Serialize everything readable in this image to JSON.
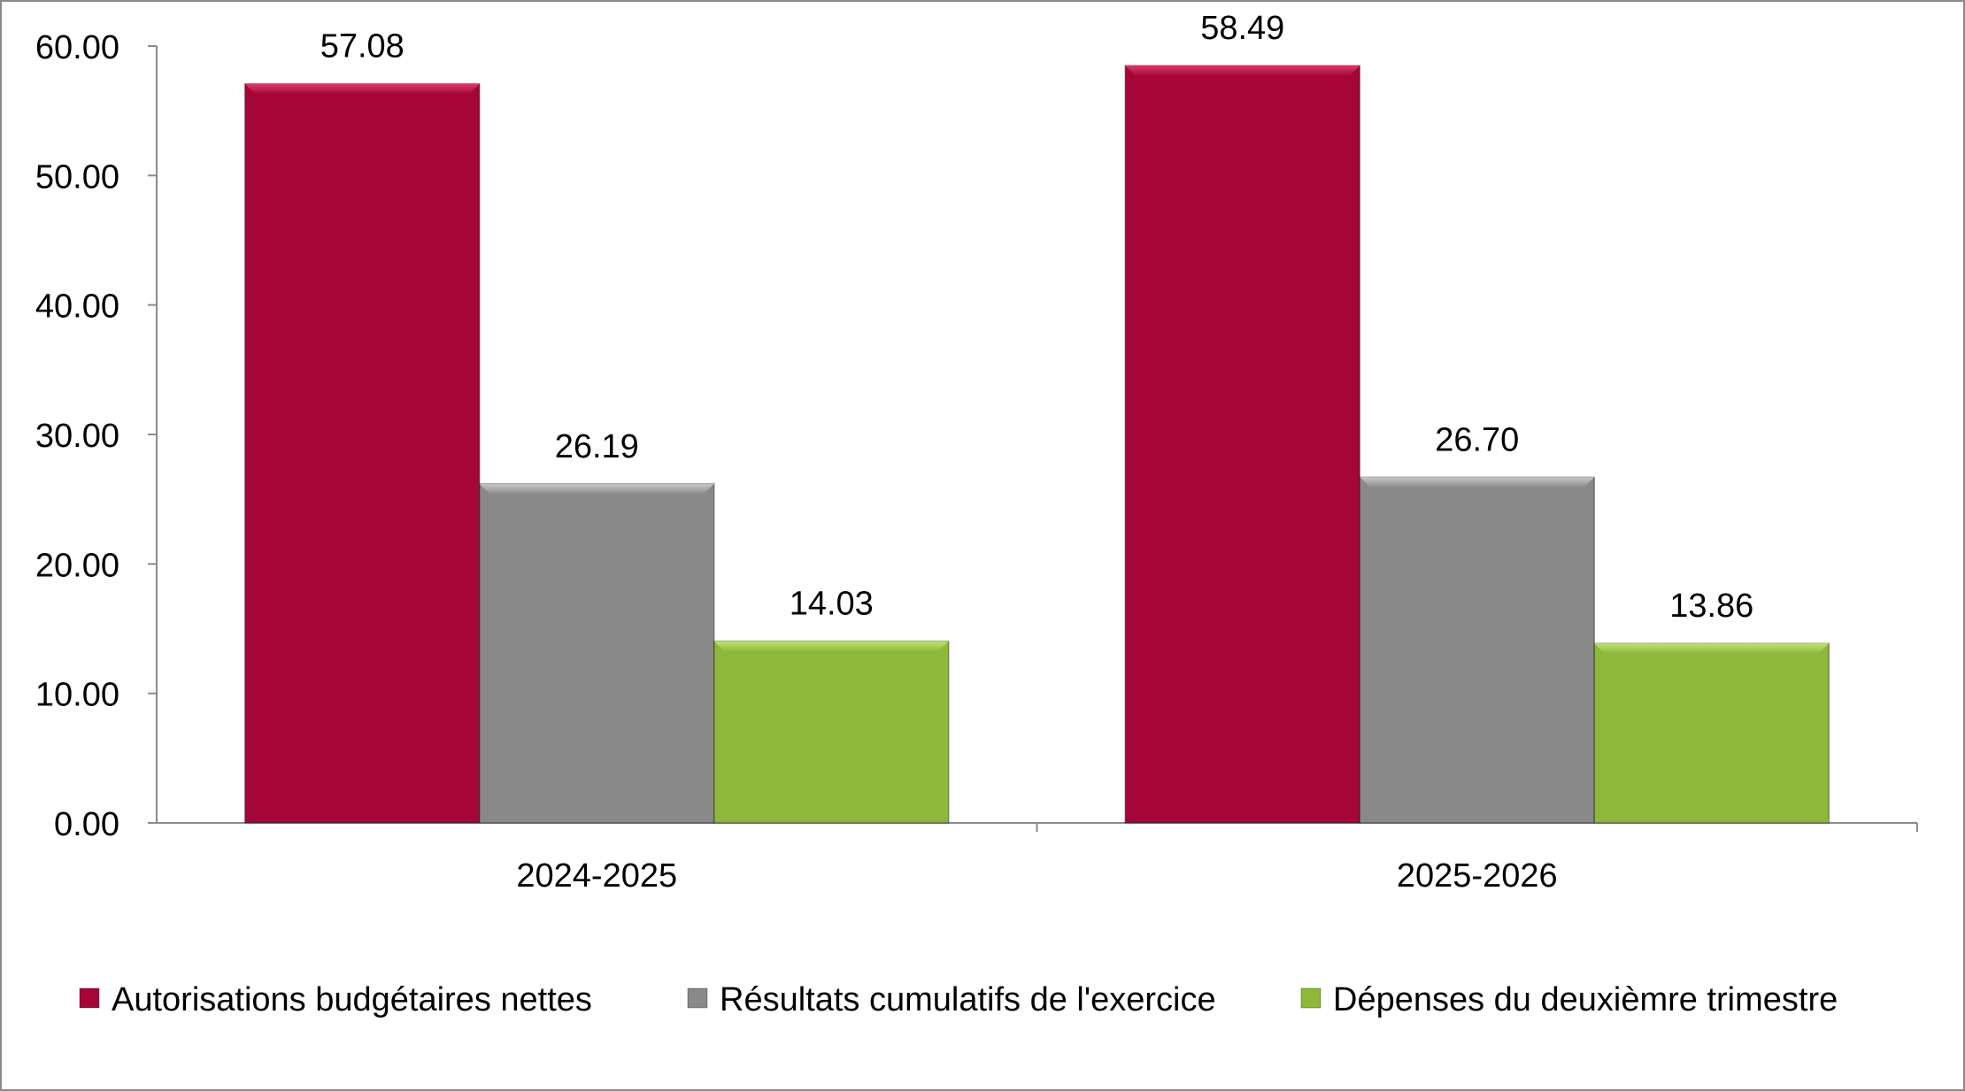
{
  "chart_data": {
    "type": "bar",
    "title": "",
    "xlabel": "",
    "ylabel": "",
    "categories": [
      "2024-2025",
      "2025-2026"
    ],
    "series": [
      {
        "name": "Autorisations budgétaires nettes",
        "values": [
          57.08,
          58.49
        ],
        "labels": [
          "57.08",
          "58.49"
        ],
        "color": "#a50538"
      },
      {
        "name": "Résultats cumulatifs de l'exercice",
        "values": [
          26.19,
          26.7
        ],
        "labels": [
          "26.19",
          "26.70"
        ],
        "color": "#898989"
      },
      {
        "name": "Dépenses du deuxièmre trimestre",
        "values": [
          14.03,
          13.86
        ],
        "labels": [
          "14.03",
          "13.86"
        ],
        "color": "#8db83a"
      }
    ],
    "ylim": [
      0,
      60
    ],
    "yticks": [
      "0.00",
      "10.00",
      "20.00",
      "30.00",
      "40.00",
      "50.00",
      "60.00"
    ],
    "grid": false,
    "legend_position": "bottom"
  }
}
